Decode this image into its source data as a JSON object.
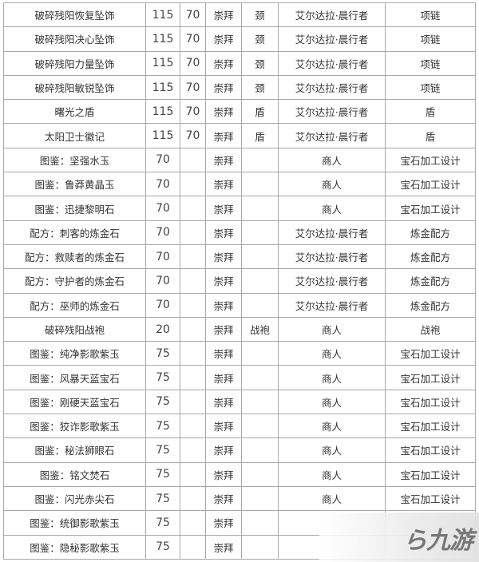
{
  "table": {
    "rows": [
      [
        "破碎残阳恢复坠饰",
        "115",
        "70",
        "崇拜",
        "颈",
        "艾尔达拉·晨行者",
        "项链"
      ],
      [
        "破碎残阳决心坠饰",
        "115",
        "70",
        "崇拜",
        "颈",
        "艾尔达拉·晨行者",
        "项链"
      ],
      [
        "破碎残阳力量坠饰",
        "115",
        "70",
        "崇拜",
        "颈",
        "艾尔达拉·晨行者",
        "项链"
      ],
      [
        "破碎残阳敏锐坠饰",
        "115",
        "70",
        "崇拜",
        "颈",
        "艾尔达拉·晨行者",
        "项链"
      ],
      [
        "曙光之盾",
        "115",
        "70",
        "崇拜",
        "盾",
        "艾尔达拉·晨行者",
        "盾"
      ],
      [
        "太阳卫士徽记",
        "115",
        "70",
        "崇拜",
        "盾",
        "艾尔达拉·晨行者",
        "盾"
      ],
      [
        "图鉴：坚强水玉",
        "70",
        "",
        "崇拜",
        "",
        "商人",
        "宝石加工设计"
      ],
      [
        "图鉴：鲁莽黄晶玉",
        "70",
        "",
        "崇拜",
        "",
        "商人",
        "宝石加工设计"
      ],
      [
        "图鉴：迅捷黎明石",
        "70",
        "",
        "崇拜",
        "",
        "商人",
        "宝石加工设计"
      ],
      [
        "配方：刺客的炼金石",
        "70",
        "",
        "崇拜",
        "",
        "艾尔达拉·晨行者",
        "炼金配方"
      ],
      [
        "配方：救赎者的炼金石",
        "70",
        "",
        "崇拜",
        "",
        "艾尔达拉·晨行者",
        "炼金配方"
      ],
      [
        "配方：守护者的炼金石",
        "70",
        "",
        "崇拜",
        "",
        "艾尔达拉·晨行者",
        "炼金配方"
      ],
      [
        "配方：巫师的炼金石",
        "70",
        "",
        "崇拜",
        "",
        "艾尔达拉·晨行者",
        "炼金配方"
      ],
      [
        "破碎残阳战袍",
        "20",
        "",
        "崇拜",
        "战袍",
        "商人",
        "战袍"
      ],
      [
        "图鉴：纯净影歌紫玉",
        "75",
        "",
        "崇拜",
        "",
        "商人",
        "宝石加工设计"
      ],
      [
        "图鉴：风暴天蓝宝石",
        "75",
        "",
        "崇拜",
        "",
        "商人",
        "宝石加工设计"
      ],
      [
        "图鉴：刚硬天蓝宝石",
        "75",
        "",
        "崇拜",
        "",
        "商人",
        "宝石加工设计"
      ],
      [
        "图鉴：狡诈影歌紫玉",
        "75",
        "",
        "崇拜",
        "",
        "商人",
        "宝石加工设计"
      ],
      [
        "图鉴：秘法狮眼石",
        "75",
        "",
        "崇拜",
        "",
        "商人",
        "宝石加工设计"
      ],
      [
        "图鉴：铭文焚石",
        "75",
        "",
        "崇拜",
        "",
        "商人",
        "宝石加工设计"
      ],
      [
        "图鉴：闪光赤尖石",
        "75",
        "",
        "崇拜",
        "",
        "商人",
        "宝石加工设计"
      ],
      [
        "图鉴：统御影歌紫玉",
        "75",
        "",
        "崇拜",
        "",
        "",
        ""
      ],
      [
        "图鉴：隐秘影歌紫玉",
        "75",
        "",
        "崇拜",
        "",
        "",
        ""
      ]
    ]
  },
  "watermark": {
    "text": "九游"
  }
}
